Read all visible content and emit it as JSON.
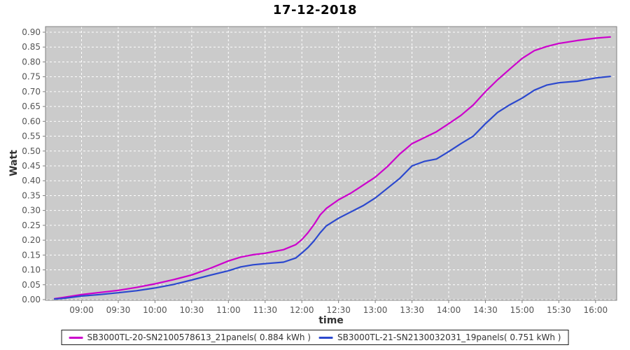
{
  "title": "17-12-2018",
  "axes": {
    "y_label": "Watt",
    "x_label": "time",
    "y_ticks": [
      "0.00",
      "0.05",
      "0.10",
      "0.15",
      "0.20",
      "0.25",
      "0.30",
      "0.35",
      "0.40",
      "0.45",
      "0.50",
      "0.55",
      "0.60",
      "0.65",
      "0.70",
      "0.75",
      "0.80",
      "0.85",
      "0.90"
    ],
    "x_ticks": [
      "09:00",
      "09:30",
      "10:00",
      "10:30",
      "11:00",
      "11:30",
      "12:00",
      "12:30",
      "13:00",
      "13:30",
      "14:00",
      "14:30",
      "15:00",
      "15:30",
      "16:00"
    ]
  },
  "legend": {
    "items": [
      {
        "label": "SB3000TL-20-SN2100578613_21panels( 0.884 kWh )",
        "color": "#cc00cc"
      },
      {
        "label": "SB3000TL-21-SN2130032031_19panels( 0.751 kWh )",
        "color": "#2b48ce"
      }
    ]
  },
  "style_colors": {
    "plot_background": "#cbcbcb",
    "plot_border": "#808080",
    "gridline": "#ffffff",
    "tick_label": "#555555",
    "series1": "#cc00cc",
    "series2": "#2b48ce"
  },
  "chart_data": {
    "type": "line",
    "title": "17-12-2018",
    "xlabel": "time",
    "ylabel": "Watt",
    "ylim": [
      0.0,
      0.9
    ],
    "y_tick_step": 0.05,
    "x_range": [
      "08:38",
      "16:12"
    ],
    "grid": "white dashed, horizontal every 0.05, vertical every 30 min",
    "legend_position": "bottom-center",
    "series": [
      {
        "name": "SB3000TL-20-SN2100578613_21panels( 0.884 kWh )",
        "color": "#cc00cc",
        "final_total_kwh": 0.884,
        "points": [
          [
            "08:38",
            0.003
          ],
          [
            "08:45",
            0.007
          ],
          [
            "09:00",
            0.017
          ],
          [
            "09:15",
            0.024
          ],
          [
            "09:30",
            0.031
          ],
          [
            "09:45",
            0.041
          ],
          [
            "10:00",
            0.053
          ],
          [
            "10:15",
            0.067
          ],
          [
            "10:30",
            0.083
          ],
          [
            "10:45",
            0.105
          ],
          [
            "11:00",
            0.13
          ],
          [
            "11:10",
            0.143
          ],
          [
            "11:20",
            0.151
          ],
          [
            "11:30",
            0.156
          ],
          [
            "11:45",
            0.168
          ],
          [
            "11:55",
            0.185
          ],
          [
            "12:00",
            0.202
          ],
          [
            "12:05",
            0.225
          ],
          [
            "12:10",
            0.253
          ],
          [
            "12:15",
            0.285
          ],
          [
            "12:20",
            0.307
          ],
          [
            "12:30",
            0.336
          ],
          [
            "12:40",
            0.358
          ],
          [
            "12:50",
            0.385
          ],
          [
            "13:00",
            0.412
          ],
          [
            "13:10",
            0.448
          ],
          [
            "13:20",
            0.49
          ],
          [
            "13:30",
            0.525
          ],
          [
            "13:40",
            0.545
          ],
          [
            "13:50",
            0.565
          ],
          [
            "14:00",
            0.592
          ],
          [
            "14:10",
            0.62
          ],
          [
            "14:20",
            0.655
          ],
          [
            "14:30",
            0.7
          ],
          [
            "14:40",
            0.74
          ],
          [
            "14:50",
            0.776
          ],
          [
            "15:00",
            0.812
          ],
          [
            "15:10",
            0.838
          ],
          [
            "15:20",
            0.852
          ],
          [
            "15:30",
            0.862
          ],
          [
            "15:45",
            0.872
          ],
          [
            "16:00",
            0.88
          ],
          [
            "16:12",
            0.884
          ]
        ]
      },
      {
        "name": "SB3000TL-21-SN2130032031_19panels( 0.751 kWh )",
        "color": "#2b48ce",
        "final_total_kwh": 0.751,
        "points": [
          [
            "08:38",
            0.002
          ],
          [
            "08:45",
            0.004
          ],
          [
            "09:00",
            0.012
          ],
          [
            "09:15",
            0.017
          ],
          [
            "09:30",
            0.023
          ],
          [
            "09:45",
            0.03
          ],
          [
            "10:00",
            0.039
          ],
          [
            "10:15",
            0.051
          ],
          [
            "10:30",
            0.066
          ],
          [
            "10:45",
            0.082
          ],
          [
            "11:00",
            0.097
          ],
          [
            "11:10",
            0.11
          ],
          [
            "11:20",
            0.117
          ],
          [
            "11:30",
            0.121
          ],
          [
            "11:45",
            0.126
          ],
          [
            "11:55",
            0.14
          ],
          [
            "12:00",
            0.157
          ],
          [
            "12:05",
            0.175
          ],
          [
            "12:10",
            0.198
          ],
          [
            "12:15",
            0.225
          ],
          [
            "12:20",
            0.248
          ],
          [
            "12:30",
            0.274
          ],
          [
            "12:40",
            0.295
          ],
          [
            "12:50",
            0.316
          ],
          [
            "13:00",
            0.342
          ],
          [
            "13:10",
            0.375
          ],
          [
            "13:20",
            0.408
          ],
          [
            "13:30",
            0.45
          ],
          [
            "13:40",
            0.465
          ],
          [
            "13:50",
            0.473
          ],
          [
            "14:00",
            0.498
          ],
          [
            "14:10",
            0.525
          ],
          [
            "14:20",
            0.55
          ],
          [
            "14:30",
            0.592
          ],
          [
            "14:40",
            0.63
          ],
          [
            "14:50",
            0.656
          ],
          [
            "15:00",
            0.678
          ],
          [
            "15:10",
            0.705
          ],
          [
            "15:20",
            0.722
          ],
          [
            "15:30",
            0.73
          ],
          [
            "15:45",
            0.735
          ],
          [
            "16:00",
            0.746
          ],
          [
            "16:12",
            0.751
          ]
        ]
      }
    ]
  }
}
